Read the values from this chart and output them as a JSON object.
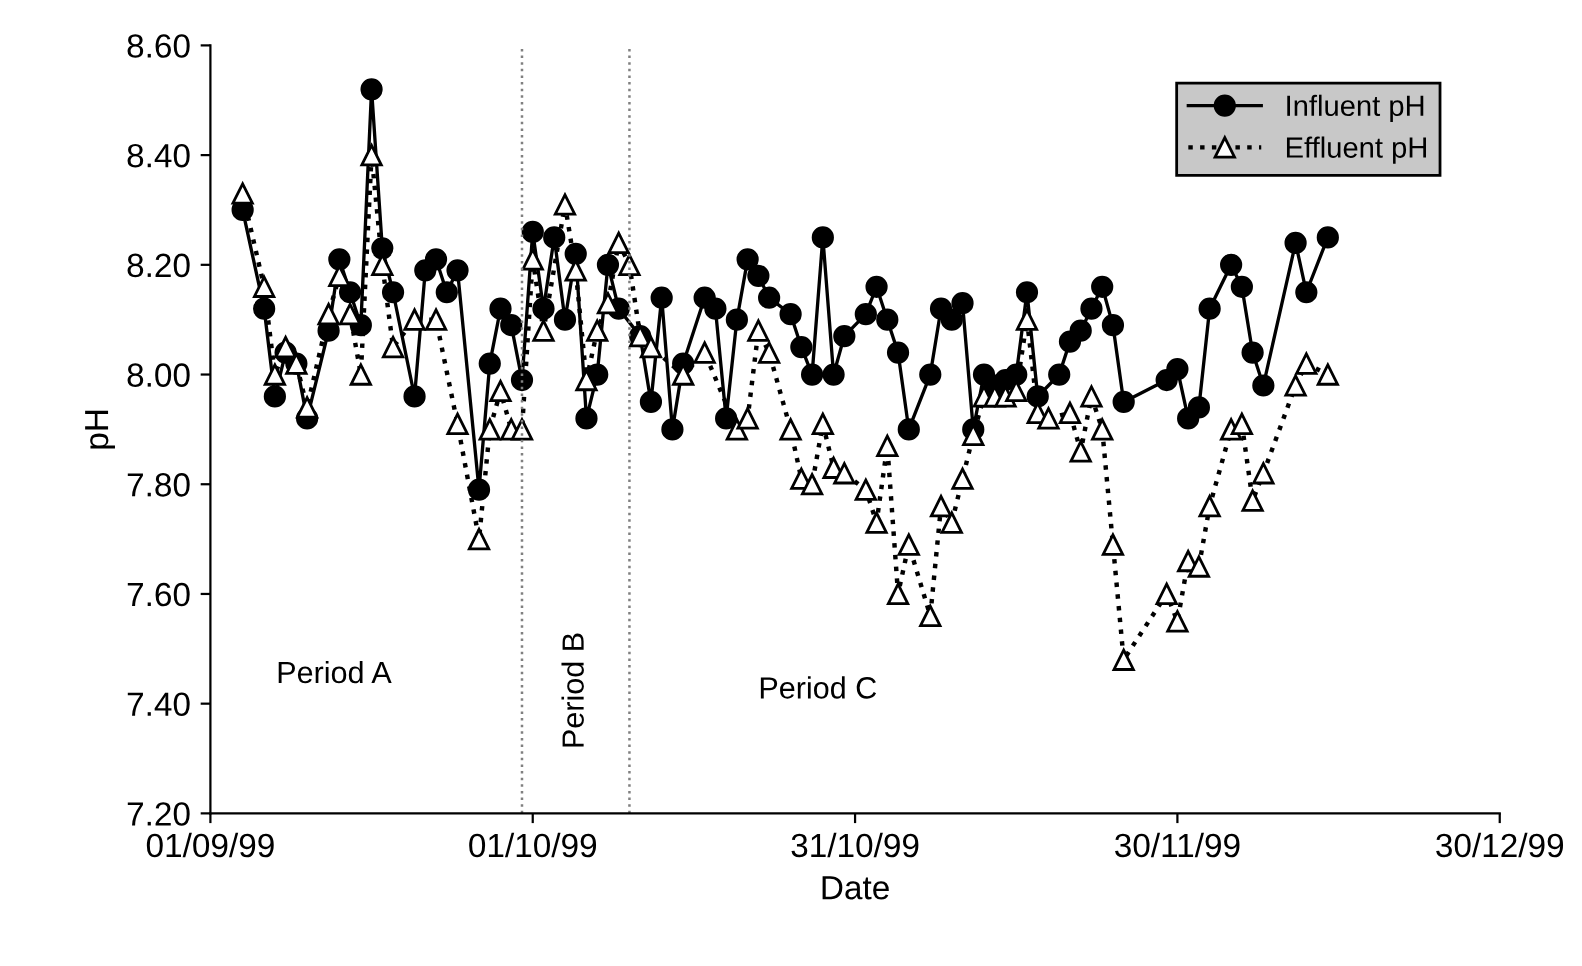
{
  "chart_data": {
    "type": "line",
    "xlabel": "Date",
    "ylabel": "pH",
    "xlim": [
      "1999-09-01",
      "1999-12-30"
    ],
    "xticks": [
      {
        "value": "1999-09-01",
        "label": "01/09/99"
      },
      {
        "value": "1999-10-01",
        "label": "01/10/99"
      },
      {
        "value": "1999-10-31",
        "label": "31/10/99"
      },
      {
        "value": "1999-11-30",
        "label": "30/11/99"
      },
      {
        "value": "1999-12-30",
        "label": "30/12/99"
      }
    ],
    "ylim": [
      7.2,
      8.6
    ],
    "yticks": [
      {
        "value": 7.2,
        "label": "7.20"
      },
      {
        "value": 7.4,
        "label": "7.40"
      },
      {
        "value": 7.6,
        "label": "7.60"
      },
      {
        "value": 7.8,
        "label": "7.80"
      },
      {
        "value": 8.0,
        "label": "8.00"
      },
      {
        "value": 8.2,
        "label": "8.20"
      },
      {
        "value": 8.4,
        "label": "8.40"
      },
      {
        "value": 8.6,
        "label": "8.60"
      }
    ],
    "grid": false,
    "legend": "top right",
    "series": [
      {
        "name": "Influent pH",
        "color": "#000000",
        "marker": "circle",
        "line_style": "solid",
        "x": [
          "1999-09-04",
          "1999-09-06",
          "1999-09-07",
          "1999-09-08",
          "1999-09-09",
          "1999-09-10",
          "1999-09-12",
          "1999-09-13",
          "1999-09-14",
          "1999-09-15",
          "1999-09-16",
          "1999-09-17",
          "1999-09-18",
          "1999-09-20",
          "1999-09-21",
          "1999-09-22",
          "1999-09-23",
          "1999-09-24",
          "1999-09-26",
          "1999-09-27",
          "1999-09-28",
          "1999-09-29",
          "1999-09-30",
          "1999-10-01",
          "1999-10-02",
          "1999-10-03",
          "1999-10-04",
          "1999-10-05",
          "1999-10-06",
          "1999-10-07",
          "1999-10-08",
          "1999-10-09",
          "1999-10-11",
          "1999-10-12",
          "1999-10-13",
          "1999-10-14",
          "1999-10-15",
          "1999-10-17",
          "1999-10-18",
          "1999-10-19",
          "1999-10-20",
          "1999-10-21",
          "1999-10-22",
          "1999-10-23",
          "1999-10-25",
          "1999-10-26",
          "1999-10-27",
          "1999-10-28",
          "1999-10-29",
          "1999-10-30",
          "1999-11-01",
          "1999-11-02",
          "1999-11-03",
          "1999-11-04",
          "1999-11-05",
          "1999-11-07",
          "1999-11-08",
          "1999-11-09",
          "1999-11-10",
          "1999-11-11",
          "1999-11-12",
          "1999-11-13",
          "1999-11-14",
          "1999-11-15",
          "1999-11-16",
          "1999-11-17",
          "1999-11-19",
          "1999-11-20",
          "1999-11-21",
          "1999-11-22",
          "1999-11-23",
          "1999-11-24",
          "1999-11-25",
          "1999-11-29",
          "1999-11-30",
          "1999-12-01",
          "1999-12-02",
          "1999-12-03",
          "1999-12-05",
          "1999-12-06",
          "1999-12-07",
          "1999-12-08",
          "1999-12-11",
          "1999-12-12",
          "1999-12-14"
        ],
        "values": [
          8.3,
          8.12,
          7.96,
          8.04,
          8.02,
          7.92,
          8.08,
          8.21,
          8.15,
          8.09,
          8.52,
          8.23,
          8.15,
          7.96,
          8.19,
          8.21,
          8.15,
          8.19,
          7.79,
          8.02,
          8.12,
          8.09,
          7.99,
          8.26,
          8.12,
          8.25,
          8.1,
          8.22,
          7.92,
          8.0,
          8.2,
          8.12,
          8.07,
          7.95,
          8.14,
          7.9,
          8.02,
          8.14,
          8.12,
          7.92,
          8.1,
          8.21,
          8.18,
          8.14,
          8.11,
          8.05,
          8.0,
          8.25,
          8.0,
          8.07,
          8.11,
          8.16,
          8.1,
          8.04,
          7.9,
          8.0,
          8.12,
          8.1,
          8.13,
          7.9,
          8.0,
          7.98,
          7.99,
          8.0,
          8.15,
          7.96,
          8.0,
          8.06,
          8.08,
          8.12,
          8.16,
          8.09,
          7.95,
          7.99,
          8.01,
          7.92,
          7.94,
          8.12,
          8.2,
          8.16,
          8.04,
          7.98,
          8.24,
          8.15,
          8.25
        ]
      },
      {
        "name": "Effluent pH",
        "color": "#000000",
        "marker": "triangle",
        "line_style": "dotted",
        "x": [
          "1999-09-04",
          "1999-09-06",
          "1999-09-07",
          "1999-09-08",
          "1999-09-09",
          "1999-09-10",
          "1999-09-12",
          "1999-09-13",
          "1999-09-14",
          "1999-09-15",
          "1999-09-16",
          "1999-09-17",
          "1999-09-18",
          "1999-09-20",
          "1999-09-22",
          "1999-09-24",
          "1999-09-26",
          "1999-09-27",
          "1999-09-28",
          "1999-09-29",
          "1999-09-30",
          "1999-10-01",
          "1999-10-02",
          "1999-10-04",
          "1999-10-05",
          "1999-10-06",
          "1999-10-07",
          "1999-10-08",
          "1999-10-09",
          "1999-10-10",
          "1999-10-11",
          "1999-10-12",
          "1999-10-15",
          "1999-10-17",
          "1999-10-20",
          "1999-10-21",
          "1999-10-22",
          "1999-10-23",
          "1999-10-25",
          "1999-10-26",
          "1999-10-27",
          "1999-10-28",
          "1999-10-29",
          "1999-10-30",
          "1999-11-01",
          "1999-11-02",
          "1999-11-03",
          "1999-11-04",
          "1999-11-05",
          "1999-11-07",
          "1999-11-08",
          "1999-11-09",
          "1999-11-10",
          "1999-11-11",
          "1999-11-12",
          "1999-11-13",
          "1999-11-14",
          "1999-11-15",
          "1999-11-16",
          "1999-11-17",
          "1999-11-18",
          "1999-11-20",
          "1999-11-21",
          "1999-11-22",
          "1999-11-23",
          "1999-11-24",
          "1999-11-25",
          "1999-11-29",
          "1999-11-30",
          "1999-12-01",
          "1999-12-02",
          "1999-12-03",
          "1999-12-05",
          "1999-12-06",
          "1999-12-07",
          "1999-12-08",
          "1999-12-11",
          "1999-12-12",
          "1999-12-14"
        ],
        "values": [
          8.33,
          8.16,
          8.0,
          8.05,
          8.02,
          7.94,
          8.11,
          8.18,
          8.11,
          8.0,
          8.4,
          8.2,
          8.05,
          8.1,
          8.1,
          7.91,
          7.7,
          7.9,
          7.97,
          7.9,
          7.9,
          8.21,
          8.08,
          8.31,
          8.19,
          7.99,
          8.08,
          8.13,
          8.24,
          8.2,
          8.07,
          8.05,
          8.0,
          8.04,
          7.9,
          7.92,
          8.08,
          8.04,
          7.9,
          7.81,
          7.8,
          7.91,
          7.83,
          7.82,
          7.79,
          7.73,
          7.87,
          7.6,
          7.69,
          7.56,
          7.76,
          7.73,
          7.81,
          7.89,
          7.96,
          7.96,
          7.96,
          7.97,
          8.1,
          7.93,
          7.92,
          7.93,
          7.86,
          7.96,
          7.9,
          7.69,
          7.48,
          7.6,
          7.55,
          7.66,
          7.65,
          7.76,
          7.9,
          7.91,
          7.77,
          7.82,
          7.98,
          8.02,
          8.0
        ]
      }
    ],
    "ref_lines": [
      {
        "axis": "x",
        "value": "1999-09-30",
        "color": "#808080",
        "line_style": "dotted"
      },
      {
        "axis": "x",
        "value": "1999-10-10",
        "color": "#808080",
        "line_style": "dotted"
      }
    ],
    "annotations": [
      "Period A",
      "Period B",
      "Period C"
    ]
  }
}
